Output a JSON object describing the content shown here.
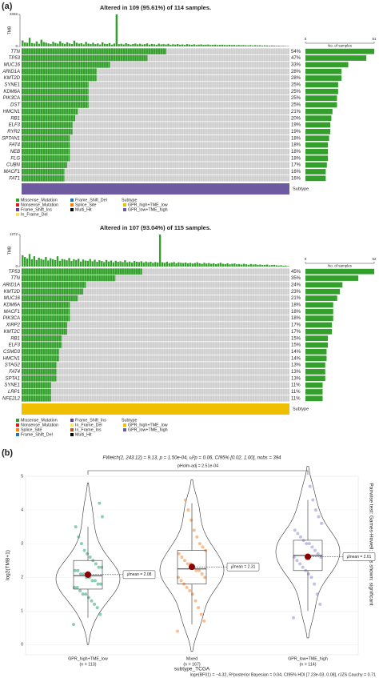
{
  "panel_labels": [
    "(a)",
    "(b)"
  ],
  "chart_data": [
    {
      "type": "oncoplot",
      "title": "Altered in 109 (95.61%) of 114 samples.",
      "tmb_label": "TMB",
      "tmb_ylim": [
        0,
        3332
      ],
      "tmb_yticks": [
        0,
        3332
      ],
      "tmb_values": [
        620,
        410,
        380,
        900,
        350,
        300,
        520,
        280,
        700,
        450,
        390,
        310,
        260,
        480,
        360,
        290,
        540,
        330,
        270,
        420,
        310,
        250,
        600,
        380,
        290,
        340,
        220,
        470,
        300,
        260,
        380,
        240,
        310,
        200,
        430,
        280,
        260,
        350,
        190,
        300,
        3332,
        240,
        280,
        210,
        330,
        260,
        190,
        250,
        300,
        220,
        280,
        200,
        240,
        310,
        190,
        260,
        230,
        180,
        290,
        210,
        240,
        200,
        270,
        170,
        230,
        190,
        250,
        180,
        210,
        160,
        240,
        200,
        170,
        220,
        150,
        190,
        210,
        160,
        180,
        200,
        150,
        170,
        190,
        140,
        160,
        180,
        150,
        130,
        170,
        140,
        160,
        120,
        150,
        130,
        140,
        120,
        110,
        140,
        100,
        130,
        110,
        120,
        90,
        110,
        100,
        80,
        100,
        90,
        70,
        80,
        60,
        70,
        50,
        40
      ],
      "genes": [
        "TTN",
        "TP53",
        "MUC16",
        "ARID1A",
        "KMT2D",
        "SYNE1",
        "KDM6A",
        "PIK3CA",
        "DST",
        "HMCN1",
        "RB1",
        "ELF3",
        "RYR2",
        "SPTAN1",
        "FAT4",
        "NEB",
        "FLG",
        "CUBN",
        "MACF1",
        "FAT1"
      ],
      "values": [
        54,
        47,
        33,
        28,
        28,
        25,
        25,
        25,
        25,
        21,
        20,
        19,
        19,
        18,
        18,
        18,
        18,
        17,
        16,
        16
      ],
      "value_labels": [
        "54%",
        "47%",
        "33%",
        "28%",
        "28%",
        "25%",
        "25%",
        "25%",
        "25%",
        "21%",
        "20%",
        "19%",
        "19%",
        "18%",
        "18%",
        "18%",
        "18%",
        "17%",
        "16%",
        "16%"
      ],
      "counts": [
        61,
        54,
        38,
        32,
        32,
        29,
        29,
        28,
        28,
        24,
        23,
        22,
        22,
        21,
        20,
        20,
        20,
        19,
        18,
        18
      ],
      "counts_xlim": [
        0,
        61
      ],
      "counts_xticks": [
        0,
        61
      ],
      "counts_label": "No. of samples",
      "color": "#33a02c",
      "subtype_label": "Subtype",
      "subtype_color": "#6e5aa0",
      "legend_items": [
        {
          "name": "Missense_Mutation",
          "color": "#33a02c"
        },
        {
          "name": "Nonsense_Mutation",
          "color": "#e31a1c"
        },
        {
          "name": "Frame_Shift_Ins",
          "color": "#6a3d9a"
        },
        {
          "name": "In_Frame_Del",
          "color": "#f5e65a"
        },
        {
          "name": "Frame_Shift_Del",
          "color": "#1f78b4"
        },
        {
          "name": "Splice_Site",
          "color": "#ff7f00"
        },
        {
          "name": "Multi_Hit",
          "color": "#000000"
        }
      ],
      "subtype_legend_title": "Subtype",
      "subtype_legend": [
        {
          "name": "GPR_high+TME_low",
          "color": "#f0c000"
        },
        {
          "name": "GPR_low+TME_high",
          "color": "#6e5aa0"
        }
      ]
    },
    {
      "type": "oncoplot",
      "title": "Altered in 107 (93.04%) of 115 samples.",
      "tmb_label": "TMB",
      "tmb_ylim": [
        0,
        1272
      ],
      "tmb_yticks": [
        0,
        1272
      ],
      "tmb_values": [
        450,
        380,
        320,
        500,
        290,
        410,
        260,
        350,
        300,
        270,
        380,
        240,
        330,
        290,
        260,
        410,
        230,
        300,
        280,
        250,
        340,
        220,
        290,
        260,
        310,
        200,
        280,
        240,
        230,
        300,
        210,
        270,
        190,
        250,
        220,
        180,
        260,
        200,
        240,
        170,
        230,
        190,
        210,
        180,
        250,
        170,
        200,
        160,
        220,
        190,
        180,
        210,
        160,
        200,
        170,
        190,
        150,
        180,
        160,
        1272,
        170,
        150,
        190,
        140,
        160,
        180,
        130,
        170,
        150,
        140,
        160,
        130,
        150,
        120,
        140,
        170,
        130,
        110,
        150,
        120,
        140,
        110,
        130,
        100,
        120,
        150,
        110,
        100,
        130,
        90,
        110,
        120,
        90,
        100,
        80,
        110,
        90,
        70,
        100,
        80,
        90,
        70,
        80,
        60,
        70,
        80,
        50,
        60,
        70,
        50,
        40,
        50,
        30,
        40,
        20
      ],
      "genes": [
        "TP53",
        "TTN",
        "ARID1A",
        "KMT2D",
        "MUC16",
        "KDM6A",
        "MACF1",
        "PIK3CA",
        "XIRP2",
        "KMT2C",
        "RB1",
        "ELF3",
        "CSMD3",
        "HMCN1",
        "STAG2",
        "FAT4",
        "SPTA1",
        "SYNE1",
        "LRP1",
        "NFE2L2"
      ],
      "values": [
        45,
        35,
        24,
        23,
        21,
        18,
        18,
        18,
        17,
        17,
        15,
        15,
        14,
        14,
        13,
        13,
        13,
        11,
        11,
        11
      ],
      "value_labels": [
        "45%",
        "35%",
        "24%",
        "23%",
        "21%",
        "18%",
        "18%",
        "18%",
        "17%",
        "17%",
        "15%",
        "15%",
        "14%",
        "14%",
        "13%",
        "13%",
        "13%",
        "11%",
        "11%",
        "11%"
      ],
      "counts": [
        52,
        40,
        28,
        26,
        24,
        21,
        21,
        21,
        20,
        20,
        17,
        17,
        16,
        16,
        15,
        15,
        15,
        13,
        13,
        13
      ],
      "counts_xlim": [
        0,
        52
      ],
      "counts_xticks": [
        0,
        52
      ],
      "counts_label": "No. of samples",
      "color": "#33a02c",
      "subtype_label": "Subtype",
      "subtype_color": "#f0c000",
      "legend_items": [
        {
          "name": "Missense_Mutation",
          "color": "#33a02c"
        },
        {
          "name": "Nonsense_Mutation",
          "color": "#e31a1c"
        },
        {
          "name": "Splice_Site",
          "color": "#ff7f00"
        },
        {
          "name": "Frame_Shift_Del",
          "color": "#1f78b4"
        },
        {
          "name": "Frame_Shift_Ins",
          "color": "#6a3d9a"
        },
        {
          "name": "In_Frame_Del",
          "color": "#f5e65a"
        },
        {
          "name": "In_Frame_Ins",
          "color": "#b15928"
        },
        {
          "name": "Multi_Hit",
          "color": "#000000"
        }
      ],
      "subtype_legend_title": "Subtype",
      "subtype_legend": [
        {
          "name": "GPR_high+TME_low",
          "color": "#f0c000"
        },
        {
          "name": "GPR_low+TME_high",
          "color": "#6e5aa0"
        }
      ]
    },
    {
      "type": "violin",
      "subtitle": "FWelch(2, 243.12) = 9.13, p = 1.50e-04, ω̂²p = 0.06, CI95% [0.02, 1.00], nobs = 394",
      "caption": "loge(BF01) = −4.32, R²posterior Bayesian = 0.04, CI95% HDI [7.23e-03, 0.08], rJZS Cauchy = 0.71",
      "side_note": "Pairwise test: Games-Howell; Bars shown: significant",
      "comparison_label": "pHolm-adj = 2.51e-04",
      "y_label": "log2(TMB+1)",
      "x_label": "subtype_TCGA",
      "ylim": [
        -0.3,
        5.0
      ],
      "yticks": [
        0,
        1,
        2,
        3,
        4,
        5
      ],
      "groups": [
        {
          "name": "GPR_high+TME_low",
          "n_label": "(n = 113)",
          "color": "#2fa37a",
          "points": [
            0.6,
            0.9,
            1.1,
            1.2,
            1.3,
            1.4,
            1.5,
            1.5,
            1.6,
            1.7,
            1.7,
            1.8,
            1.8,
            1.9,
            1.9,
            2.0,
            2.0,
            2.1,
            2.1,
            2.2,
            2.2,
            2.3,
            2.3,
            2.4,
            2.5,
            2.6,
            2.7,
            2.8,
            3.0,
            3.2,
            3.5,
            3.8,
            4.2
          ],
          "whisker_low": 0.8,
          "q1": 1.65,
          "median": 2.05,
          "q3": 2.5,
          "whisker_high": 3.5,
          "mean": 2.08,
          "mean_label": "μ̂mean = 2.08"
        },
        {
          "name": "Mixed",
          "n_label": "(n = 167)",
          "color": "#f08a3c",
          "points": [
            0.4,
            0.7,
            0.9,
            1.1,
            1.3,
            1.5,
            1.6,
            1.7,
            1.8,
            1.9,
            2.0,
            2.0,
            2.1,
            2.2,
            2.2,
            2.3,
            2.4,
            2.4,
            2.5,
            2.6,
            2.7,
            2.8,
            2.9,
            3.0,
            3.2,
            3.4,
            3.7,
            4.0,
            4.3
          ],
          "whisker_low": 0.6,
          "q1": 1.8,
          "median": 2.25,
          "q3": 2.8,
          "whisker_high": 4.2,
          "mean": 2.31,
          "mean_label": "μ̂mean = 2.31"
        },
        {
          "name": "GPR_low+TME_high",
          "n_label": "(n = 114)",
          "color": "#8f8fd2",
          "points": [
            0.8,
            1.2,
            1.5,
            1.8,
            2.0,
            2.1,
            2.2,
            2.3,
            2.4,
            2.5,
            2.6,
            2.6,
            2.7,
            2.8,
            2.9,
            3.0,
            3.0,
            3.1,
            3.2,
            3.3,
            3.4,
            3.6,
            3.8,
            4.0,
            4.3,
            4.7
          ],
          "whisker_low": 1.0,
          "q1": 2.2,
          "median": 2.65,
          "q3": 3.1,
          "whisker_high": 4.3,
          "mean": 2.61,
          "mean_label": "μ̂mean = 2.61"
        }
      ]
    }
  ]
}
